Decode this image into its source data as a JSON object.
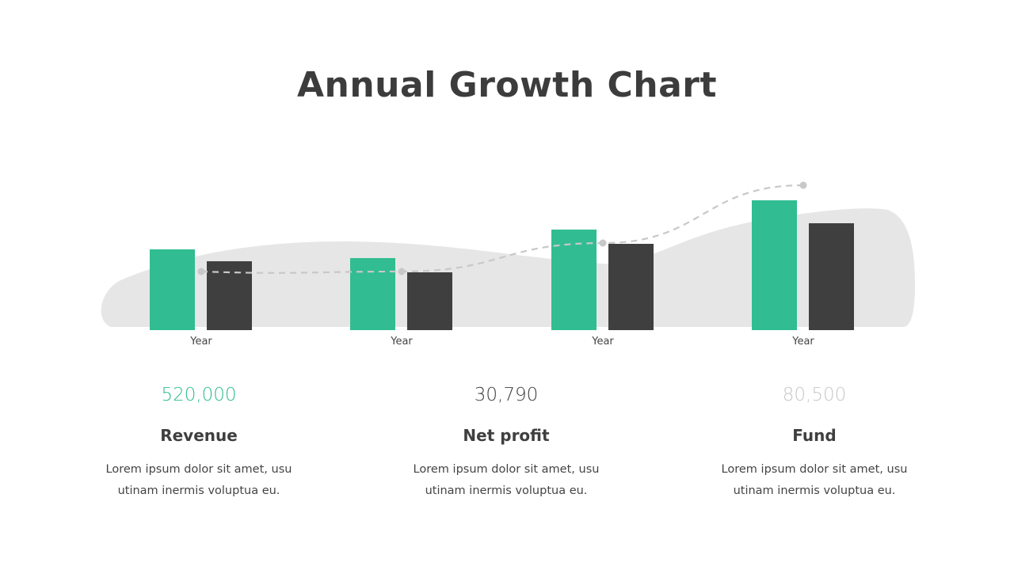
{
  "chart_data": {
    "type": "bar",
    "title": "Annual Growth Chart",
    "categories": [
      "Year",
      "Year",
      "Year",
      "Year"
    ],
    "series": [
      {
        "values": [
          102,
          91,
          127,
          164
        ],
        "color": "#31bd91"
      },
      {
        "values": [
          87,
          73,
          109,
          135
        ],
        "color": "#3f3f3f"
      }
    ],
    "line": {
      "values": [
        74,
        74,
        110,
        183
      ],
      "color": "#c8c8c8",
      "style": "dashed"
    },
    "ylim": [
      0,
      190
    ],
    "grid": false,
    "axes_visible": false
  },
  "stats": [
    {
      "value": "520,000",
      "label": "Revenue",
      "desc1": "Lorem ipsum dolor sit amet, usu",
      "desc2": "utinam inermis voluptua eu.",
      "color": "#31bd91"
    },
    {
      "value": "30,790",
      "label": "Net profit",
      "desc1": "Lorem ipsum dolor sit amet, usu",
      "desc2": "utinam inermis voluptua eu.",
      "color": "#3f3f3f"
    },
    {
      "value": "80,500",
      "label": "Fund",
      "desc1": "Lorem ipsum dolor sit amet, usu",
      "desc2": "utinam inermis voluptua eu.",
      "color": "#c8c8c8"
    }
  ]
}
